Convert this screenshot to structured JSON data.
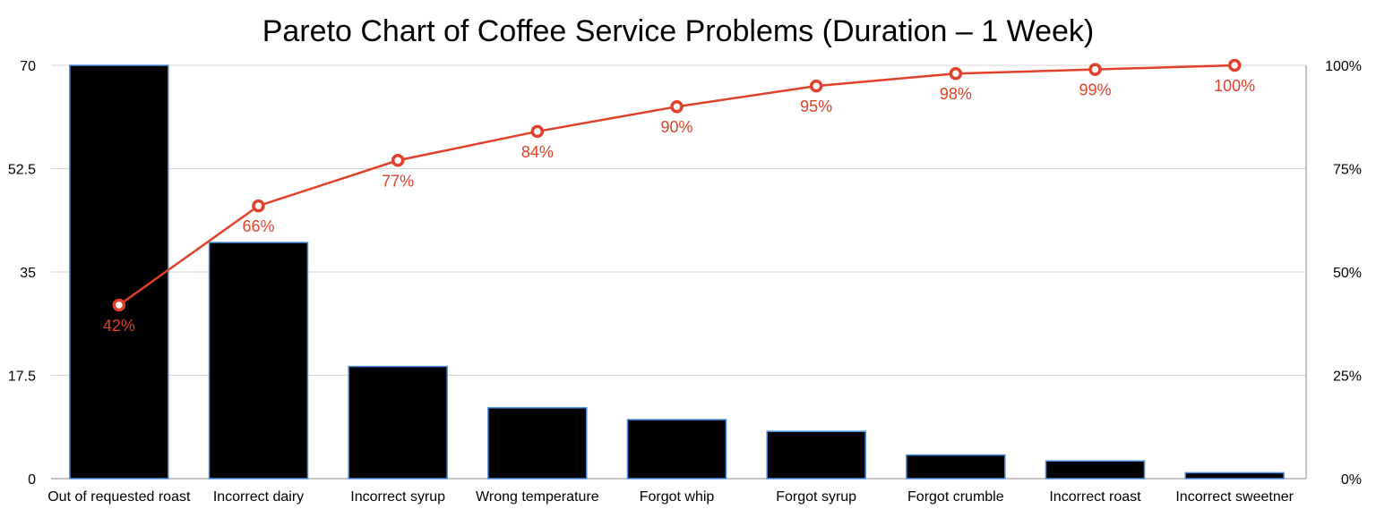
{
  "chart_data": {
    "type": "bar",
    "title": "Pareto Chart of Coffee Service Problems (Duration – 1 Week)",
    "categories": [
      "Out of requested roast",
      "Incorrect dairy",
      "Incorrect syrup",
      "Wrong temperature",
      "Forgot whip",
      "Forgot syrup",
      "Forgot crumble",
      "Incorrect roast",
      "Incorrect sweetner"
    ],
    "values": [
      70,
      40,
      19,
      12,
      10,
      8,
      4,
      3,
      1
    ],
    "cumulative_percent": [
      42,
      66,
      77,
      84,
      90,
      95,
      98,
      99,
      100
    ],
    "cumulative_labels": [
      "42%",
      "66%",
      "77%",
      "84%",
      "90%",
      "95%",
      "98%",
      "99%",
      "100%"
    ],
    "ylim": [
      0,
      70
    ],
    "y_ticks": [
      "0",
      "17.5",
      "35",
      "52.5",
      "70"
    ],
    "y2lim": [
      0,
      100
    ],
    "y2_ticks": [
      "0%",
      "25%",
      "50%",
      "75%",
      "100%"
    ],
    "grid": true,
    "legend": "none",
    "colors": {
      "bar": "#000000",
      "bar_border": "#4a90e2",
      "line": "#e0412b"
    }
  }
}
